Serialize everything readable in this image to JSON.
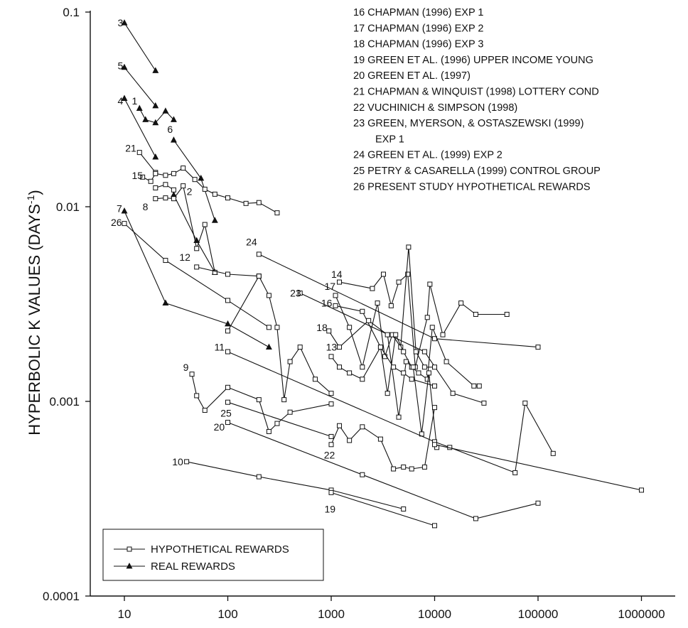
{
  "chart_data": {
    "type": "scatter",
    "title": "",
    "xlabel": "",
    "ylabel": "HYPERBOLIC K VALUES (DAYS",
    "ylabel_sup": "-1",
    "ylabel_close": ")",
    "xscale": "log",
    "yscale": "log",
    "xlim": [
      7,
      1200000
    ],
    "ylim": [
      0.0001,
      0.1
    ],
    "x_ticks": [
      {
        "value": 10,
        "label": "10"
      },
      {
        "value": 100,
        "label": "100"
      },
      {
        "value": 1000,
        "label": "1000"
      },
      {
        "value": 10000,
        "label": "10000"
      },
      {
        "value": 100000,
        "label": "100000"
      },
      {
        "value": 1000000,
        "label": "1000000"
      }
    ],
    "y_ticks": [
      {
        "value": 0.1,
        "label": "0.1"
      },
      {
        "value": 0.01,
        "label": "0.01"
      },
      {
        "value": 0.001,
        "label": "0.001"
      },
      {
        "value": 0.0001,
        "label": "0.0001"
      }
    ],
    "grid": false,
    "legend_position": "bottom-left",
    "legend": [
      {
        "label": "HYPOTHETICAL REWARDS",
        "marker": "square-open"
      },
      {
        "label": "REAL REWARDS",
        "marker": "triangle-filled"
      }
    ],
    "notes": [
      "16 CHAPMAN (1996) EXP 1",
      "17 CHAPMAN (1996) EXP 2",
      "18 CHAPMAN (1996) EXP 3",
      "19 GREEN ET AL. (1996) UPPER INCOME YOUNG",
      "20 GREEN ET AL. (1997)",
      "21 CHAPMAN & WINQUIST (1998) LOTTERY COND",
      "22 VUCHINICH & SIMPSON (1998)",
      "23 GREEN, MYERSON, & OSTASZEWSKI (1999)",
      "EXP 1",
      "24 GREEN ET AL. (1999) EXP 2",
      "25 PETRY & CASARELLA (1999) CONTROL GROUP",
      "26 PRESENT STUDY HYPOTHETICAL REWARDS"
    ],
    "series": [
      {
        "label": "3",
        "marker": "triangle",
        "x": [
          10,
          20
        ],
        "y": [
          0.088,
          0.05
        ]
      },
      {
        "label": "5",
        "marker": "triangle",
        "x": [
          10,
          20
        ],
        "y": [
          0.052,
          0.033
        ]
      },
      {
        "label": "4",
        "marker": "triangle",
        "x": [
          10,
          20
        ],
        "y": [
          0.036,
          0.018
        ]
      },
      {
        "label": "1",
        "marker": "triangle",
        "x": [
          14,
          16,
          20,
          25,
          30
        ],
        "y": [
          0.032,
          0.028,
          0.027,
          0.031,
          0.028
        ]
      },
      {
        "label": "6",
        "marker": "triangle",
        "x": [
          30,
          55,
          75
        ],
        "y": [
          0.022,
          0.014,
          0.0085
        ]
      },
      {
        "label": "2",
        "marker": "triangle",
        "x": [
          30,
          50,
          75
        ],
        "y": [
          0.0115,
          0.0067,
          0.0046
        ]
      },
      {
        "label": "7",
        "marker": "triangle",
        "x": [
          10,
          25,
          100,
          250
        ],
        "y": [
          0.0095,
          0.0032,
          0.0025,
          0.0019
        ]
      },
      {
        "label": "21",
        "marker": "square",
        "x": [
          14,
          20
        ],
        "y": [
          0.019,
          0.015
        ]
      },
      {
        "label": "15",
        "marker": "square",
        "x": [
          15,
          18,
          20,
          25,
          30,
          37,
          48,
          60,
          75,
          100,
          150,
          200,
          300
        ],
        "y": [
          0.0142,
          0.0135,
          0.0148,
          0.0145,
          0.0148,
          0.0158,
          0.0138,
          0.0123,
          0.0116,
          0.0111,
          0.0104,
          0.0105,
          0.0093
        ]
      },
      {
        "label": "8",
        "marker": "square",
        "x": [
          20,
          25,
          30,
          37,
          50,
          60,
          75
        ],
        "y": [
          0.011,
          0.0111,
          0.011,
          0.0128,
          0.0061,
          0.0081,
          0.0046
        ]
      },
      {
        "label": "",
        "marker": "square",
        "x": [
          20,
          25,
          30
        ],
        "y": [
          0.0125,
          0.013,
          0.0122
        ]
      },
      {
        "label": "26",
        "marker": "square",
        "x": [
          10,
          25,
          100,
          250
        ],
        "y": [
          0.0082,
          0.0053,
          0.0033,
          0.0024
        ]
      },
      {
        "label": "12",
        "marker": "square",
        "x": [
          50,
          100,
          200,
          250,
          300,
          350,
          400,
          500,
          700,
          1000
        ],
        "y": [
          0.0049,
          0.0045,
          0.0044,
          0.0035,
          0.0024,
          0.00102,
          0.0016,
          0.0019,
          0.0013,
          0.0011
        ]
      },
      {
        "label": "",
        "marker": "square",
        "x": [
          100,
          200
        ],
        "y": [
          0.0023,
          0.0044
        ]
      },
      {
        "label": "24",
        "marker": "square",
        "x": [
          200,
          10000,
          100000
        ],
        "y": [
          0.0057,
          0.0021,
          0.0019
        ]
      },
      {
        "label": "23",
        "marker": "square",
        "x": [
          500,
          8000,
          15000,
          30000
        ],
        "y": [
          0.0036,
          0.0018,
          0.0011,
          0.00098
        ]
      },
      {
        "label": "14",
        "marker": "square",
        "x": [
          1200,
          2500,
          3200,
          3800,
          4500,
          5500,
          6500,
          8500,
          9000,
          12000,
          18000,
          25000,
          50000
        ],
        "y": [
          0.0041,
          0.0038,
          0.0045,
          0.0031,
          0.0041,
          0.0045,
          0.0015,
          0.0027,
          0.004,
          0.0022,
          0.0032,
          0.0028,
          0.0028
        ]
      },
      {
        "label": "17",
        "marker": "square",
        "x": [
          1100,
          1500,
          2000,
          2800,
          3300,
          3900,
          4700,
          5600,
          6600,
          8000,
          10000
        ],
        "y": [
          0.0035,
          0.0024,
          0.0015,
          0.0032,
          0.0017,
          0.0022,
          0.0019,
          0.0062,
          0.0018,
          0.0015,
          0.0015
        ]
      },
      {
        "label": "16",
        "marker": "square",
        "x": [
          1100,
          2000,
          3000,
          3500,
          4200,
          5000,
          6000,
          7000,
          8500,
          9500,
          13000,
          24000,
          27000
        ],
        "y": [
          0.0031,
          0.0029,
          0.0019,
          0.0011,
          0.0022,
          0.0018,
          0.0015,
          0.0014,
          0.0013,
          0.0024,
          0.0016,
          0.0012,
          0.0012
        ]
      },
      {
        "label": "18",
        "marker": "square",
        "x": [
          950,
          1200,
          2300,
          3500,
          4500,
          5300,
          6200,
          7500,
          8800,
          10500
        ],
        "y": [
          0.0023,
          0.0019,
          0.0026,
          0.0022,
          0.00083,
          0.0016,
          0.0015,
          0.00068,
          0.0014,
          0.00058
        ]
      },
      {
        "label": "13",
        "marker": "square",
        "x": [
          1000,
          1200,
          1500,
          2000,
          3000,
          4000,
          5000,
          6000,
          10000
        ],
        "y": [
          0.0017,
          0.0015,
          0.0014,
          0.0013,
          0.0019,
          0.0015,
          0.0014,
          0.0013,
          0.0012
        ]
      },
      {
        "label": "11",
        "marker": "square",
        "x": [
          100,
          10000,
          14000,
          60000,
          75000,
          140000
        ],
        "y": [
          0.0018,
          0.00062,
          0.00058,
          0.00043,
          0.00098,
          0.00054
        ]
      },
      {
        "label": "",
        "marker": "square",
        "x": [
          10000,
          1000000
        ],
        "y": [
          0.0006,
          0.00035
        ]
      },
      {
        "label": "9",
        "marker": "square",
        "x": [
          45,
          50,
          60,
          100,
          200,
          250,
          300,
          400,
          1000
        ],
        "y": [
          0.00138,
          0.00107,
          0.0009,
          0.00118,
          0.00102,
          0.0007,
          0.00077,
          0.00088,
          0.00097
        ]
      },
      {
        "label": "25",
        "marker": "square",
        "x": [
          100,
          1000
        ],
        "y": [
          0.00099,
          0.00066
        ]
      },
      {
        "label": "22",
        "marker": "square",
        "x": [
          1000,
          1200,
          1500,
          2000,
          3000,
          4000,
          5000,
          6000,
          8000,
          10000
        ],
        "y": [
          0.0006,
          0.00075,
          0.00063,
          0.00074,
          0.00064,
          0.00045,
          0.00046,
          0.00045,
          0.00046,
          0.00093
        ]
      },
      {
        "label": "20",
        "marker": "square",
        "x": [
          100,
          2000,
          25000,
          100000
        ],
        "y": [
          0.00078,
          0.00042,
          0.00025,
          0.0003
        ]
      },
      {
        "label": "10",
        "marker": "square",
        "x": [
          40,
          200,
          1000,
          5000
        ],
        "y": [
          0.00049,
          0.00041,
          0.00035,
          0.00028
        ]
      },
      {
        "label": "19",
        "marker": "square",
        "x": [
          1000,
          10000
        ],
        "y": [
          0.00034,
          0.00023
        ]
      }
    ],
    "series_label_positions": [
      {
        "text": "3",
        "x": 8.6,
        "y": 0.088
      },
      {
        "text": "5",
        "x": 8.6,
        "y": 0.053
      },
      {
        "text": "4",
        "x": 8.6,
        "y": 0.035
      },
      {
        "text": "1",
        "x": 11.8,
        "y": 0.035
      },
      {
        "text": "21",
        "x": 10.2,
        "y": 0.02
      },
      {
        "text": "15",
        "x": 11.8,
        "y": 0.0145
      },
      {
        "text": "8",
        "x": 15,
        "y": 0.01
      },
      {
        "text": "2",
        "x": 40,
        "y": 0.012
      },
      {
        "text": "6",
        "x": 26,
        "y": 0.025
      },
      {
        "text": "7",
        "x": 8.4,
        "y": 0.0098
      },
      {
        "text": "26",
        "x": 7.4,
        "y": 0.0083
      },
      {
        "text": "12",
        "x": 34,
        "y": 0.0055
      },
      {
        "text": "24",
        "x": 150,
        "y": 0.0066
      },
      {
        "text": "14",
        "x": 1000,
        "y": 0.0045
      },
      {
        "text": "17",
        "x": 860,
        "y": 0.0039
      },
      {
        "text": "23",
        "x": 400,
        "y": 0.0036
      },
      {
        "text": "16",
        "x": 800,
        "y": 0.0032
      },
      {
        "text": "18",
        "x": 720,
        "y": 0.0024
      },
      {
        "text": "13",
        "x": 890,
        "y": 0.0019
      },
      {
        "text": "11",
        "x": 74,
        "y": 0.0019
      },
      {
        "text": "9",
        "x": 37,
        "y": 0.0015
      },
      {
        "text": "25",
        "x": 85,
        "y": 0.00087
      },
      {
        "text": "20",
        "x": 73,
        "y": 0.00074
      },
      {
        "text": "22",
        "x": 850,
        "y": 0.00053
      },
      {
        "text": "10",
        "x": 29,
        "y": 0.00049
      },
      {
        "text": "19",
        "x": 860,
        "y": 0.00028
      }
    ]
  }
}
